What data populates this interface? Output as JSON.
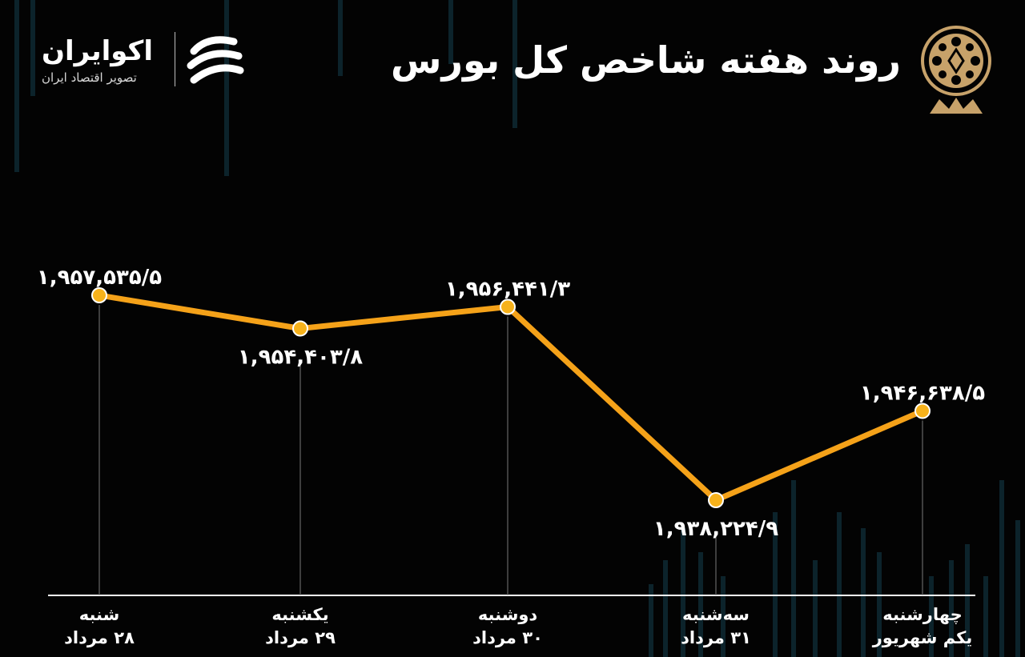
{
  "header": {
    "title": "روند هفته شاخص کل بورس",
    "brand_name": "اکوایران",
    "brand_tagline": "تصویر اقتصاد ایران",
    "brand_logo_icon": "ekoiran-logo-icon",
    "exchange_emblem_icon": "tehran-stock-exchange-emblem-icon"
  },
  "colors": {
    "background": "#030303",
    "line": "#f5a219",
    "marker": "#f7b21b",
    "marker_stroke": "#ffffff",
    "emblem": "#c7a26a",
    "text": "#ffffff"
  },
  "chart_data": {
    "type": "line",
    "title": "روند هفته شاخص کل بورس",
    "xlabel": "",
    "ylabel": "",
    "grid": false,
    "categories": [
      {
        "day": "شنبه",
        "date": "۲۸ مرداد"
      },
      {
        "day": "یکشنبه",
        "date": "۲۹ مرداد"
      },
      {
        "day": "دوشنبه",
        "date": "۳۰ مرداد"
      },
      {
        "day": "سه‌شنبه",
        "date": "۳۱ مرداد"
      },
      {
        "day": "چهارشنبه",
        "date": "یکم شهریور"
      }
    ],
    "values": [
      1957535.5,
      1954403.8,
      1956441.3,
      1938224.9,
      1946638.5
    ],
    "data_labels": [
      "۱,۹۵۷,۵۳۵/۵",
      "۱,۹۵۴,۴۰۳/۸",
      "۱,۹۵۶,۴۴۱/۳",
      "۱,۹۳۸,۲۲۴/۹",
      "۱,۹۴۶,۶۳۸/۵"
    ],
    "label_positions": [
      "above",
      "below",
      "above",
      "below",
      "above"
    ]
  }
}
